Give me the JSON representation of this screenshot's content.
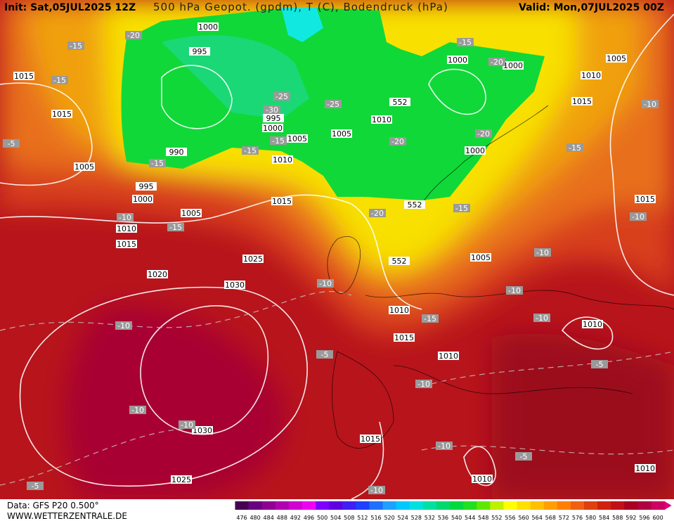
{
  "header": {
    "init": "Init: Sat,05JUL2025 12Z",
    "title": "500 hPa Geopot. (gpdm), T (C), Bodendruck (hPa)",
    "valid": "Valid: Mon,07JUL2025 00Z"
  },
  "footer": {
    "data": "Data: GFS P20 0.500°",
    "site": "WWW.WETTERZENTRALE.DE"
  },
  "colorbar": {
    "labels": [
      "476",
      "480",
      "484",
      "488",
      "492",
      "496",
      "500",
      "504",
      "508",
      "512",
      "516",
      "520",
      "524",
      "528",
      "532",
      "536",
      "540",
      "544",
      "548",
      "552",
      "556",
      "560",
      "564",
      "568",
      "572",
      "576",
      "580",
      "584",
      "588",
      "592",
      "596",
      "600"
    ]
  },
  "pressure_labels": [
    "1000",
    "995",
    "1000",
    "1000",
    "1005",
    "1015",
    "1010",
    "1015",
    "1015",
    "552",
    "1010",
    "995",
    "1000",
    "1005",
    "1005",
    "990",
    "1000",
    "1010",
    "1005",
    "995",
    "1000",
    "1015",
    "552",
    "1005",
    "1010",
    "1015",
    "552",
    "1025",
    "1005",
    "1020",
    "1030",
    "1010",
    "1015",
    "1010",
    "1010",
    "1015",
    "1030",
    "1015",
    "1010",
    "1010",
    "1025"
  ],
  "temperature_labels": [
    "-20",
    "-15",
    "-15",
    "-20",
    "-15",
    "-25",
    "-30",
    "-25",
    "-10",
    "-5",
    "-15",
    "-15",
    "-15",
    "-20",
    "-20",
    "-15",
    "-20",
    "-15",
    "-10",
    "-15",
    "-10",
    "-10",
    "-10",
    "-10",
    "-10",
    "-15",
    "-10",
    "-5",
    "-5",
    "-10",
    "-10",
    "-10",
    "-10",
    "-5",
    "-10",
    "-5"
  ]
}
